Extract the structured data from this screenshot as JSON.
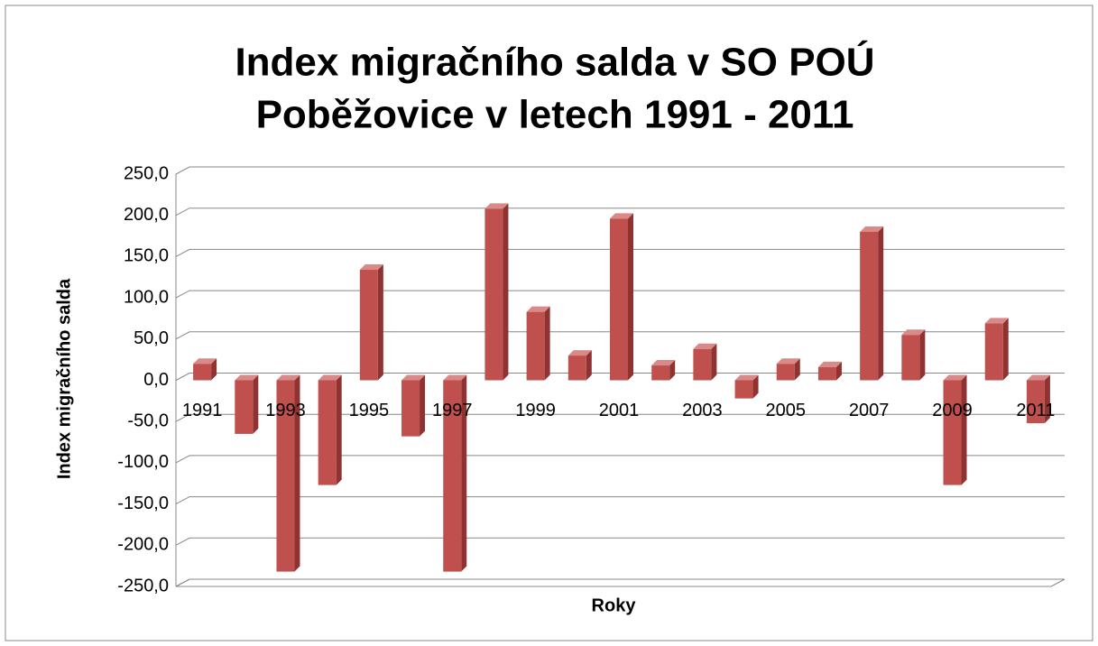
{
  "chart_data": {
    "type": "bar",
    "title": [
      "Index migračního salda v SO POÚ",
      "Poběžovice v letech 1991 - 2011"
    ],
    "xlabel": "Roky",
    "ylabel": "Index migračního salda",
    "categories": [
      "1991",
      null,
      "1993",
      null,
      "1995",
      null,
      "1997",
      null,
      "1999",
      null,
      "2001",
      null,
      "2003",
      null,
      "2005",
      null,
      "2007",
      null,
      "2009",
      null,
      "2011"
    ],
    "values": [
      20,
      -65,
      -232,
      -127,
      134,
      -68,
      -232,
      208,
      83,
      30,
      196,
      18,
      38,
      -22,
      20,
      16,
      180,
      55,
      -127,
      69,
      -52
    ],
    "color": "#c0504d",
    "ylim": [
      -250,
      250
    ],
    "yticks": [
      {
        "value": -250,
        "label": "-250,0"
      },
      {
        "value": -200,
        "label": "-200,0"
      },
      {
        "value": -150,
        "label": "-150,0"
      },
      {
        "value": -100,
        "label": "-100,0"
      },
      {
        "value": -50,
        "label": "-50,0"
      },
      {
        "value": 0,
        "label": "0,0"
      },
      {
        "value": 50,
        "label": "50,0"
      },
      {
        "value": 100,
        "label": "100,0"
      },
      {
        "value": 150,
        "label": "150,0"
      },
      {
        "value": 200,
        "label": "200,0"
      },
      {
        "value": 250,
        "label": "250,0"
      }
    ],
    "grid": true
  }
}
